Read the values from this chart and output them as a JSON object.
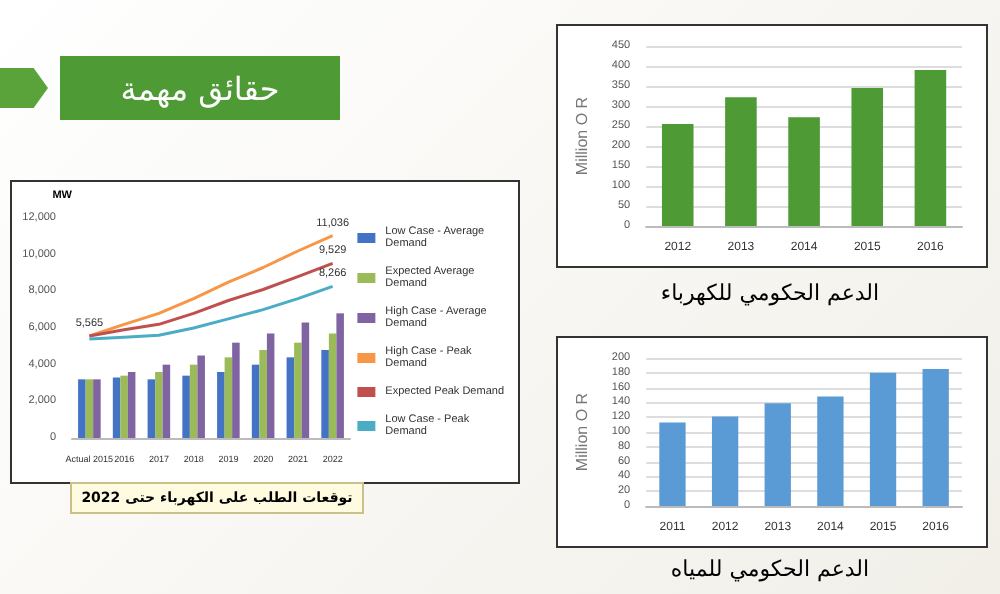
{
  "chart_data": [
    {
      "type": "other",
      "title": "حقائق مهمة"
    },
    {
      "type": "bar",
      "title": "توقعات الطلب على الكهرباء حتى 2022",
      "ylabel": "MW",
      "categories": [
        "Actual 2015",
        "2016",
        "2017",
        "2018",
        "2019",
        "2020",
        "2021",
        "2022"
      ],
      "ylim": [
        0,
        12000
      ],
      "yticks": [
        {
          "value": 0,
          "label": "0"
        },
        {
          "value": 2000,
          "label": "2,000"
        },
        {
          "value": 4000,
          "label": "4,000"
        },
        {
          "value": 6000,
          "label": "6,000"
        },
        {
          "value": 8000,
          "label": "8,000"
        },
        {
          "value": 10000,
          "label": "10,000"
        },
        {
          "value": 12000,
          "label": "12,000"
        }
      ],
      "grid": false,
      "legend": "right",
      "series": [
        {
          "name": "Low Case - Average Demand",
          "color": "#4472c4",
          "values": [
            3200,
            3300,
            3200,
            3400,
            3600,
            4000,
            4400,
            4800
          ]
        },
        {
          "name": "Expected Average Demand",
          "color": "#9bbb59",
          "values": [
            3200,
            3400,
            3600,
            4000,
            4400,
            4800,
            5200,
            5700
          ]
        },
        {
          "name": "High Case - Average Demand",
          "color": "#8064a2",
          "values": [
            3200,
            3600,
            4000,
            4500,
            5200,
            5700,
            6300,
            6800
          ]
        },
        {
          "name": "High Case - Peak Demand",
          "type": "line",
          "color": "#f79646",
          "values": [
            5565,
            6200,
            6800,
            7600,
            8500,
            9300,
            10200,
            11036
          ],
          "value_labels": [
            "5,565",
            null,
            null,
            null,
            null,
            null,
            null,
            "11,036"
          ]
        },
        {
          "name": "Expected Peak Demand",
          "type": "line",
          "color": "#c0504d",
          "values": [
            5565,
            5900,
            6200,
            6800,
            7500,
            8100,
            8800,
            9529
          ],
          "value_labels": [
            null,
            null,
            null,
            null,
            null,
            null,
            null,
            "9,529"
          ]
        },
        {
          "name": "Low Case - Peak Demand",
          "type": "line",
          "color": "#4bacc6",
          "values": [
            5400,
            5500,
            5600,
            6000,
            6500,
            7000,
            7600,
            8266
          ],
          "value_labels": [
            null,
            null,
            null,
            null,
            null,
            null,
            null,
            "8,266"
          ]
        }
      ]
    },
    {
      "type": "bar",
      "title": "الدعم الحكومي للكهرباء",
      "ylabel": "Million O R",
      "categories": [
        "2012",
        "2013",
        "2014",
        "2015",
        "2016"
      ],
      "ylim": [
        0,
        450
      ],
      "yticks": [
        0,
        50,
        100,
        150,
        200,
        250,
        300,
        350,
        400,
        450
      ],
      "grid": "y",
      "series": [
        {
          "color": "#4e9a35",
          "values": [
            255,
            322,
            272,
            345,
            390
          ]
        }
      ]
    },
    {
      "type": "bar",
      "title": "الدعم الحكومي للمياه",
      "ylabel": "Million O R",
      "categories": [
        "2011",
        "2012",
        "2013",
        "2014",
        "2015",
        "2016"
      ],
      "ylim": [
        0,
        200
      ],
      "yticks": [
        0,
        20,
        40,
        60,
        80,
        100,
        120,
        140,
        160,
        180,
        200
      ],
      "grid": "y",
      "series": [
        {
          "color": "#5b9bd5",
          "values": [
            113,
            121,
            139,
            148,
            180,
            185
          ]
        }
      ]
    }
  ]
}
